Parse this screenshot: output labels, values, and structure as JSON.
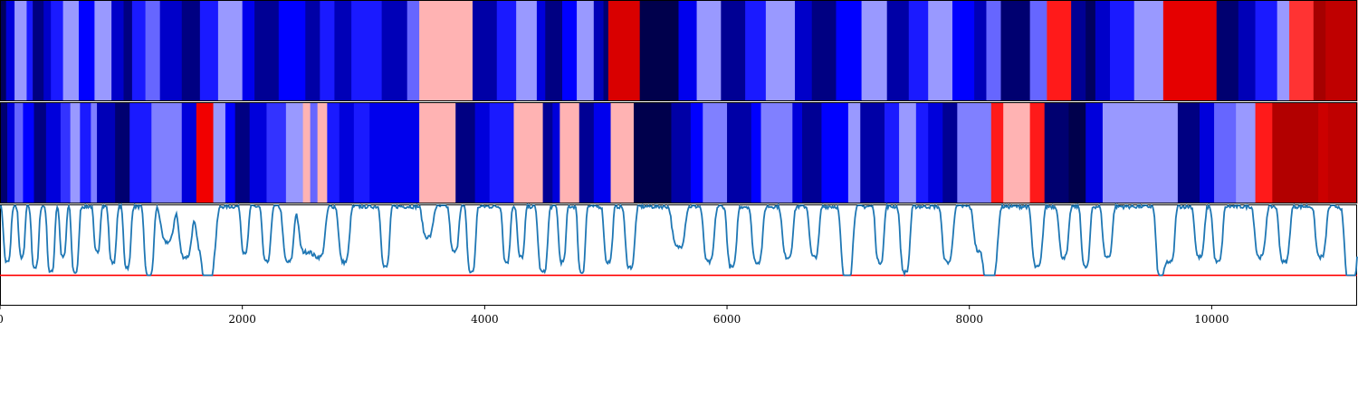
{
  "chart_data": [
    {
      "type": "heatmap",
      "title": "",
      "colormap": "seismic",
      "value_range": [
        -1,
        1
      ],
      "xlim": [
        0,
        11200
      ],
      "segments": [
        [
          0,
          50,
          -0.95
        ],
        [
          50,
          120,
          -0.6
        ],
        [
          120,
          220,
          -0.2
        ],
        [
          220,
          270,
          -0.45
        ],
        [
          270,
          360,
          -0.85
        ],
        [
          360,
          420,
          -0.65
        ],
        [
          420,
          520,
          -0.45
        ],
        [
          520,
          650,
          -0.2
        ],
        [
          650,
          780,
          -0.5
        ],
        [
          780,
          920,
          -0.2
        ],
        [
          920,
          1020,
          -0.65
        ],
        [
          1020,
          1090,
          -0.85
        ],
        [
          1090,
          1200,
          -0.45
        ],
        [
          1200,
          1320,
          -0.3
        ],
        [
          1320,
          1500,
          -0.65
        ],
        [
          1500,
          1650,
          -0.85
        ],
        [
          1650,
          1800,
          -0.45
        ],
        [
          1800,
          2000,
          -0.2
        ],
        [
          2000,
          2100,
          -0.55
        ],
        [
          2100,
          2300,
          -0.8
        ],
        [
          2300,
          2520,
          -0.5
        ],
        [
          2520,
          2640,
          -0.75
        ],
        [
          2640,
          2760,
          -0.45
        ],
        [
          2760,
          2900,
          -0.7
        ],
        [
          2900,
          3150,
          -0.45
        ],
        [
          3150,
          3360,
          -0.7
        ],
        [
          3360,
          3460,
          -0.3
        ],
        [
          3460,
          3900,
          0.15
        ],
        [
          3900,
          4100,
          -0.75
        ],
        [
          4100,
          4260,
          -0.45
        ],
        [
          4260,
          4430,
          -0.2
        ],
        [
          4430,
          4500,
          -0.6
        ],
        [
          4500,
          4640,
          -0.85
        ],
        [
          4640,
          4760,
          -0.5
        ],
        [
          4760,
          4900,
          -0.2
        ],
        [
          4900,
          4980,
          -0.7
        ],
        [
          4980,
          5020,
          -0.9
        ],
        [
          5020,
          5280,
          0.65
        ],
        [
          5280,
          5600,
          -1.0
        ],
        [
          5600,
          5750,
          -0.55
        ],
        [
          5750,
          5950,
          -0.2
        ],
        [
          5950,
          6150,
          -0.8
        ],
        [
          6150,
          6320,
          -0.45
        ],
        [
          6320,
          6560,
          -0.2
        ],
        [
          6560,
          6700,
          -0.65
        ],
        [
          6700,
          6900,
          -0.85
        ],
        [
          6900,
          7110,
          -0.5
        ],
        [
          7110,
          7320,
          -0.2
        ],
        [
          7320,
          7500,
          -0.75
        ],
        [
          7500,
          7660,
          -0.45
        ],
        [
          7660,
          7860,
          -0.2
        ],
        [
          7860,
          8040,
          -0.5
        ],
        [
          8040,
          8140,
          -0.7
        ],
        [
          8140,
          8260,
          -0.3
        ],
        [
          8260,
          8500,
          -0.9
        ],
        [
          8500,
          8640,
          -0.3
        ],
        [
          8640,
          8840,
          0.45
        ],
        [
          8840,
          8960,
          -0.8
        ],
        [
          8960,
          9040,
          -0.95
        ],
        [
          9040,
          9160,
          -0.65
        ],
        [
          9160,
          9360,
          -0.45
        ],
        [
          9360,
          9600,
          -0.2
        ],
        [
          9600,
          10040,
          0.6
        ],
        [
          10040,
          10220,
          -0.9
        ],
        [
          10220,
          10360,
          -0.7
        ],
        [
          10360,
          10540,
          -0.45
        ],
        [
          10540,
          10640,
          -0.2
        ],
        [
          10640,
          10840,
          0.4
        ],
        [
          10840,
          10940,
          0.85
        ],
        [
          10940,
          11200,
          0.75
        ]
      ]
    },
    {
      "type": "heatmap",
      "title": "",
      "colormap": "seismic",
      "value_range": [
        -1,
        1
      ],
      "xlim": [
        0,
        11200
      ],
      "segments": [
        [
          0,
          60,
          -0.9
        ],
        [
          60,
          120,
          -0.6
        ],
        [
          120,
          190,
          -0.3
        ],
        [
          190,
          280,
          -0.5
        ],
        [
          280,
          380,
          -0.85
        ],
        [
          380,
          500,
          -0.6
        ],
        [
          500,
          580,
          -0.4
        ],
        [
          580,
          660,
          -0.2
        ],
        [
          660,
          750,
          -0.45
        ],
        [
          750,
          800,
          -0.25
        ],
        [
          800,
          950,
          -0.7
        ],
        [
          950,
          1070,
          -0.9
        ],
        [
          1070,
          1250,
          -0.45
        ],
        [
          1250,
          1500,
          -0.25
        ],
        [
          1500,
          1620,
          -0.6
        ],
        [
          1620,
          1760,
          0.55
        ],
        [
          1760,
          1860,
          -0.2
        ],
        [
          1860,
          1940,
          -0.5
        ],
        [
          1940,
          2060,
          -0.85
        ],
        [
          2060,
          2200,
          -0.6
        ],
        [
          2200,
          2360,
          -0.4
        ],
        [
          2360,
          2500,
          -0.2
        ],
        [
          2500,
          2560,
          0.15
        ],
        [
          2560,
          2620,
          -0.3
        ],
        [
          2620,
          2700,
          0.15
        ],
        [
          2700,
          2800,
          -0.45
        ],
        [
          2800,
          2920,
          -0.6
        ],
        [
          2920,
          3050,
          -0.45
        ],
        [
          3050,
          3460,
          -0.55
        ],
        [
          3460,
          3760,
          0.15
        ],
        [
          3760,
          3920,
          -0.85
        ],
        [
          3920,
          4040,
          -0.6
        ],
        [
          4040,
          4240,
          -0.45
        ],
        [
          4240,
          4480,
          0.15
        ],
        [
          4480,
          4560,
          -0.8
        ],
        [
          4560,
          4620,
          -0.6
        ],
        [
          4620,
          4780,
          0.15
        ],
        [
          4780,
          4900,
          -0.8
        ],
        [
          4900,
          5040,
          -0.55
        ],
        [
          5040,
          5230,
          0.15
        ],
        [
          5230,
          5540,
          -1.0
        ],
        [
          5540,
          5700,
          -0.75
        ],
        [
          5700,
          5800,
          -0.5
        ],
        [
          5800,
          6000,
          -0.25
        ],
        [
          6000,
          6200,
          -0.75
        ],
        [
          6200,
          6280,
          -0.5
        ],
        [
          6280,
          6540,
          -0.25
        ],
        [
          6540,
          6620,
          -0.6
        ],
        [
          6620,
          6780,
          -0.8
        ],
        [
          6780,
          7000,
          -0.5
        ],
        [
          7000,
          7100,
          -0.2
        ],
        [
          7100,
          7300,
          -0.75
        ],
        [
          7300,
          7420,
          -0.45
        ],
        [
          7420,
          7560,
          -0.2
        ],
        [
          7560,
          7660,
          -0.45
        ],
        [
          7660,
          7780,
          -0.6
        ],
        [
          7780,
          7900,
          -0.8
        ],
        [
          7900,
          8180,
          -0.25
        ],
        [
          8180,
          8280,
          0.45
        ],
        [
          8280,
          8500,
          0.15
        ],
        [
          8500,
          8620,
          0.45
        ],
        [
          8620,
          8820,
          -0.9
        ],
        [
          8820,
          8960,
          -1.0
        ],
        [
          8960,
          9100,
          -0.6
        ],
        [
          9100,
          9720,
          -0.2
        ],
        [
          9720,
          9900,
          -0.85
        ],
        [
          9900,
          10020,
          -0.6
        ],
        [
          10020,
          10200,
          -0.3
        ],
        [
          10200,
          10360,
          -0.2
        ],
        [
          10360,
          10500,
          0.45
        ],
        [
          10500,
          10880,
          0.8
        ],
        [
          10880,
          10960,
          0.7
        ],
        [
          10960,
          11200,
          0.75
        ]
      ]
    },
    {
      "type": "line",
      "title": "",
      "xlabel": "",
      "ylabel": "",
      "xlim": [
        0,
        11200
      ],
      "ylim": [
        0,
        1
      ],
      "x_ticks": [
        0,
        2000,
        4000,
        6000,
        8000,
        10000
      ],
      "threshold": 0.3,
      "dips": [
        [
          60,
          0.55,
          35
        ],
        [
          180,
          0.5,
          30
        ],
        [
          290,
          0.6,
          35
        ],
        [
          420,
          0.65,
          35
        ],
        [
          520,
          0.5,
          30
        ],
        [
          620,
          0.65,
          35
        ],
        [
          800,
          0.45,
          30
        ],
        [
          930,
          0.55,
          35
        ],
        [
          1050,
          0.6,
          35
        ],
        [
          1230,
          0.7,
          45
        ],
        [
          1380,
          0.35,
          60
        ],
        [
          1530,
          0.5,
          60
        ],
        [
          1680,
          0.45,
          70
        ],
        [
          1730,
          0.55,
          60
        ],
        [
          2020,
          0.45,
          35
        ],
        [
          2200,
          0.55,
          40
        ],
        [
          2380,
          0.55,
          50
        ],
        [
          2520,
          0.45,
          60
        ],
        [
          2630,
          0.5,
          60
        ],
        [
          2840,
          0.55,
          50
        ],
        [
          3180,
          0.6,
          40
        ],
        [
          3530,
          0.3,
          50
        ],
        [
          3750,
          0.45,
          40
        ],
        [
          3890,
          0.65,
          40
        ],
        [
          4180,
          0.55,
          35
        ],
        [
          4300,
          0.5,
          35
        ],
        [
          4480,
          0.65,
          45
        ],
        [
          4640,
          0.55,
          35
        ],
        [
          4800,
          0.65,
          35
        ],
        [
          5020,
          0.55,
          40
        ],
        [
          5200,
          0.6,
          45
        ],
        [
          5600,
          0.4,
          60
        ],
        [
          5850,
          0.55,
          50
        ],
        [
          6040,
          0.6,
          45
        ],
        [
          6250,
          0.55,
          50
        ],
        [
          6500,
          0.5,
          50
        ],
        [
          6720,
          0.5,
          45
        ],
        [
          6990,
          0.75,
          55
        ],
        [
          7260,
          0.55,
          40
        ],
        [
          7470,
          0.65,
          45
        ],
        [
          7820,
          0.55,
          50
        ],
        [
          8090,
          0.45,
          60
        ],
        [
          8180,
          0.7,
          60
        ],
        [
          8560,
          0.6,
          50
        ],
        [
          8780,
          0.5,
          45
        ],
        [
          8960,
          0.6,
          40
        ],
        [
          9140,
          0.5,
          45
        ],
        [
          9580,
          0.7,
          45
        ],
        [
          9660,
          0.55,
          40
        ],
        [
          9900,
          0.5,
          45
        ],
        [
          10050,
          0.55,
          45
        ],
        [
          10400,
          0.5,
          50
        ],
        [
          10600,
          0.55,
          50
        ],
        [
          10900,
          0.5,
          50
        ],
        [
          11150,
          0.8,
          60
        ]
      ]
    }
  ],
  "colors": {
    "line": "#1f77b4",
    "threshold": "#ff0000",
    "axis": "#000000",
    "background": "#ffffff"
  }
}
